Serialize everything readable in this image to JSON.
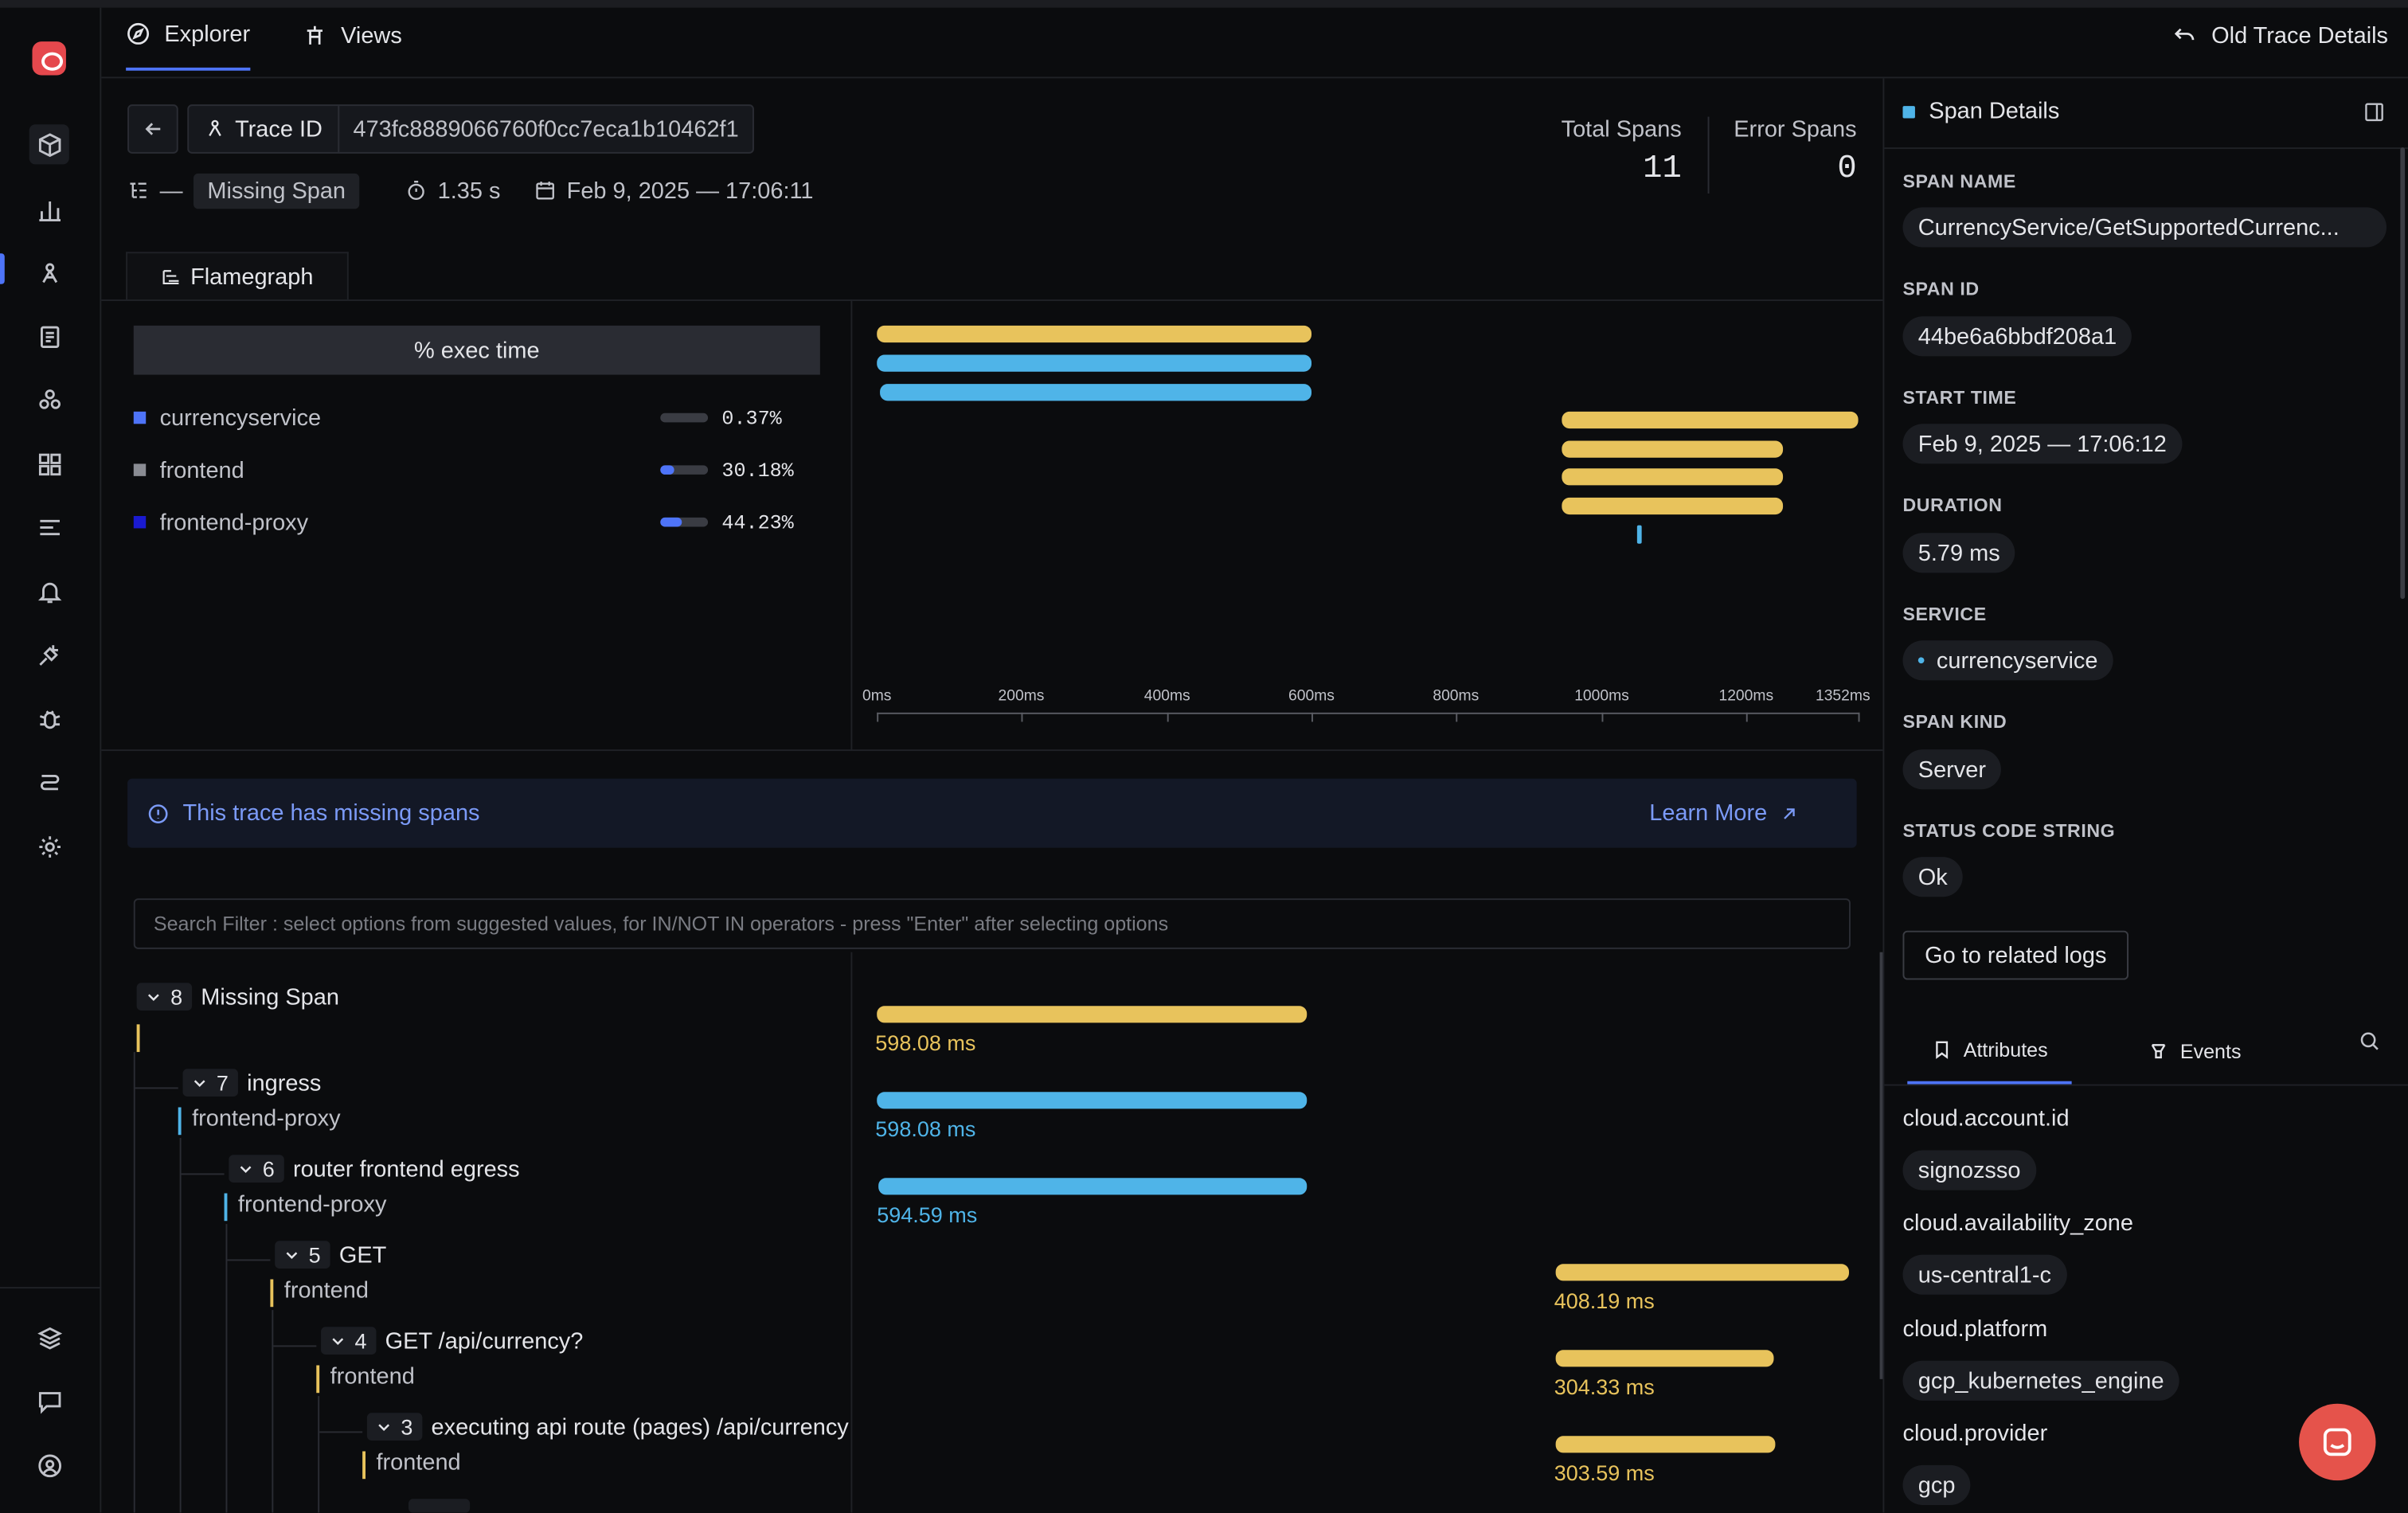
{
  "tabs": {
    "explorer": "Explorer",
    "views": "Views",
    "old_trace": "Old Trace Details"
  },
  "header": {
    "trace_id_label": "Trace ID",
    "trace_id": "473fc8889066760f0cc7eca1b10462f1",
    "root_dash": "—",
    "root_chip": "Missing Span",
    "duration": "1.35 s",
    "timestamp": "Feb 9, 2025 — 17:06:11",
    "total_spans_label": "Total Spans",
    "total_spans": "11",
    "error_spans_label": "Error Spans",
    "error_spans": "0"
  },
  "flamegraph": {
    "tab_label": "Flamegraph",
    "exec_header": "% exec time",
    "services": [
      {
        "name": "currencyservice",
        "pct": "0.37%",
        "fill": 0.0037,
        "color": "#4e74f8"
      },
      {
        "name": "frontend",
        "pct": "30.18%",
        "fill": 0.3018,
        "color": "#8a8c93"
      },
      {
        "name": "frontend-proxy",
        "pct": "44.23%",
        "fill": 0.4423,
        "color": "#1a1ad0"
      }
    ],
    "ticks": [
      "0ms",
      "200ms",
      "400ms",
      "600ms",
      "800ms",
      "1000ms",
      "1200ms",
      "1352ms"
    ]
  },
  "banner": {
    "message": "This trace has missing spans",
    "learn_more": "Learn More"
  },
  "search": {
    "placeholder": "Search Filter : select options from suggested values, for IN/NOT IN operators - press \"Enter\" after selecting options"
  },
  "tree": [
    {
      "count": "8",
      "name": "Missing Span",
      "service": "",
      "duration": "598.08 ms",
      "color": "#e8c35c"
    },
    {
      "count": "7",
      "name": "ingress",
      "service": "frontend-proxy",
      "duration": "598.08 ms",
      "color": "#4fb4e8"
    },
    {
      "count": "6",
      "name": "router frontend egress",
      "service": "frontend-proxy",
      "duration": "594.59 ms",
      "color": "#4fb4e8"
    },
    {
      "count": "5",
      "name": "GET",
      "service": "frontend",
      "duration": "408.19 ms",
      "color": "#e8c35c"
    },
    {
      "count": "4",
      "name": "GET /api/currency?",
      "service": "frontend",
      "duration": "304.33 ms",
      "color": "#e8c35c"
    },
    {
      "count": "3",
      "name": "executing api route (pages) /api/currency",
      "service": "frontend",
      "duration": "303.59 ms",
      "color": "#e8c35c"
    }
  ],
  "span_details": {
    "title": "Span Details",
    "span_name_label": "SPAN NAME",
    "span_name": "CurrencyService/GetSupportedCurrenc...",
    "span_id_label": "SPAN ID",
    "span_id": "44be6a6bbdf208a1",
    "start_time_label": "START TIME",
    "start_time": "Feb 9, 2025 — 17:06:12",
    "duration_label": "DURATION",
    "duration": "5.79 ms",
    "service_label": "SERVICE",
    "service": "currencyservice",
    "span_kind_label": "SPAN KIND",
    "span_kind": "Server",
    "status_label": "STATUS CODE STRING",
    "status": "Ok",
    "related_logs": "Go to related logs",
    "tab_attributes": "Attributes",
    "tab_events": "Events",
    "attributes": [
      {
        "key": "cloud.account.id",
        "value": "signozsso"
      },
      {
        "key": "cloud.availability_zone",
        "value": "us-central1-c"
      },
      {
        "key": "cloud.platform",
        "value": "gcp_kubernetes_engine"
      },
      {
        "key": "cloud.provider",
        "value": "gcp"
      }
    ]
  },
  "colors": {
    "accent": "#4e74f8",
    "yellow": "#e8c35c",
    "blue": "#4fb4e8",
    "brand": "#e5484d"
  }
}
